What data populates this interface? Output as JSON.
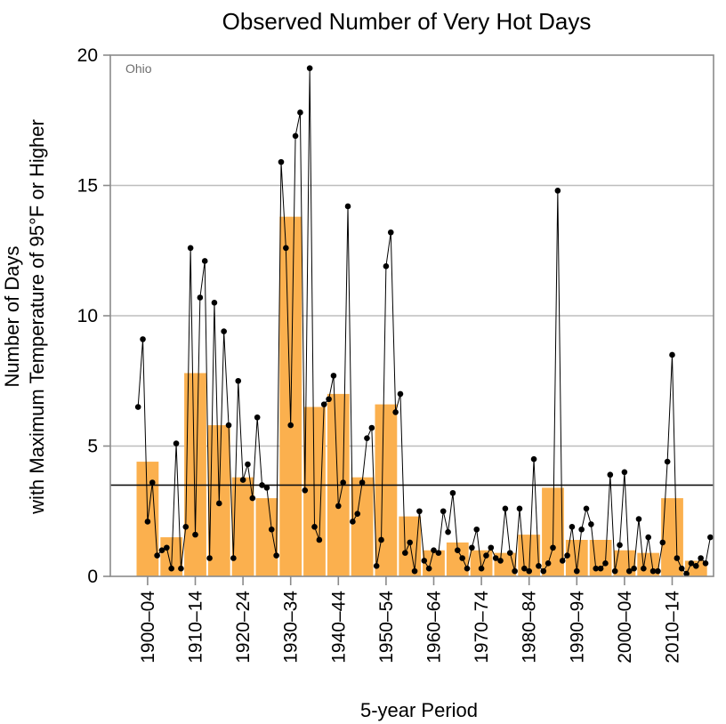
{
  "chart_data": {
    "type": "bar+line",
    "title": "Observed Number of Very Hot Days",
    "xlabel": "5-year Period",
    "ylabel_line1": "Number of Days",
    "ylabel_line2": "with Maximum Temperature of 95°F or Higher",
    "region_label": "Ohio",
    "ylim": [
      0,
      20
    ],
    "yticks": [
      0,
      5,
      10,
      15,
      20
    ],
    "grid": "horizontal",
    "categories": [
      "1900–04",
      "1905–09",
      "1910–14",
      "1915–19",
      "1920–24",
      "1925–29",
      "1930–34",
      "1935–39",
      "1940–44",
      "1945–49",
      "1950–54",
      "1955–59",
      "1960–64",
      "1965–69",
      "1970–74",
      "1975–79",
      "1980–84",
      "1985–89",
      "1990–94",
      "1995–99",
      "2000–04",
      "2005–09",
      "2010–14",
      "2015–19"
    ],
    "x_tick_labels": [
      "1900–04",
      "1910–14",
      "1920–24",
      "1930–34",
      "1940–44",
      "1950–54",
      "1960–64",
      "1970–74",
      "1980–84",
      "1990–94",
      "2000–04",
      "2010–14"
    ],
    "bar_values": [
      4.4,
      1.5,
      7.8,
      5.8,
      3.8,
      3.0,
      13.8,
      6.5,
      7.0,
      3.8,
      6.6,
      2.3,
      1.0,
      1.3,
      1.0,
      0.9,
      1.6,
      3.4,
      1.4,
      1.4,
      1.0,
      0.9,
      3.0,
      0.6
    ],
    "average_line": 3.5,
    "annual": {
      "start_year": 1900,
      "values": [
        6.5,
        9.1,
        2.1,
        3.6,
        0.8,
        1.0,
        1.1,
        0.3,
        5.1,
        0.3,
        1.9,
        12.6,
        1.6,
        10.7,
        12.1,
        0.7,
        10.5,
        2.8,
        9.4,
        5.8,
        0.7,
        7.5,
        3.7,
        4.3,
        3.0,
        6.1,
        3.5,
        3.4,
        1.8,
        0.8,
        15.9,
        12.6,
        5.8,
        16.9,
        17.8,
        3.3,
        19.5,
        1.9,
        1.4,
        6.6,
        6.8,
        7.7,
        2.7,
        3.6,
        14.2,
        2.1,
        2.4,
        3.6,
        5.3,
        5.7,
        0.4,
        1.4,
        11.9,
        13.2,
        6.3,
        7.0,
        0.9,
        1.3,
        0.2,
        2.5,
        0.6,
        0.3,
        1.0,
        0.9,
        2.5,
        1.7,
        3.2,
        1.0,
        0.7,
        0.3,
        1.1,
        1.8,
        0.3,
        0.8,
        1.1,
        0.7,
        0.6,
        2.6,
        0.9,
        0.2,
        2.6,
        0.3,
        0.2,
        4.5,
        0.4,
        0.2,
        0.5,
        1.1,
        14.8,
        0.6,
        0.8,
        1.9,
        0.2,
        1.8,
        2.6,
        2.0,
        0.3,
        0.3,
        0.5,
        3.9,
        0.2,
        1.2,
        4.0,
        0.2,
        0.3,
        2.2,
        0.3,
        1.5,
        0.2,
        0.2,
        1.3,
        4.4,
        8.5,
        0.7,
        0.3,
        0.1,
        0.5,
        0.4,
        0.7,
        0.5,
        1.5
      ]
    },
    "colors": {
      "bar": "#fbb04e",
      "line": "#000000",
      "grid": "#bdbdbd",
      "avg": "#111111",
      "frame": "#8a8a8a"
    }
  }
}
